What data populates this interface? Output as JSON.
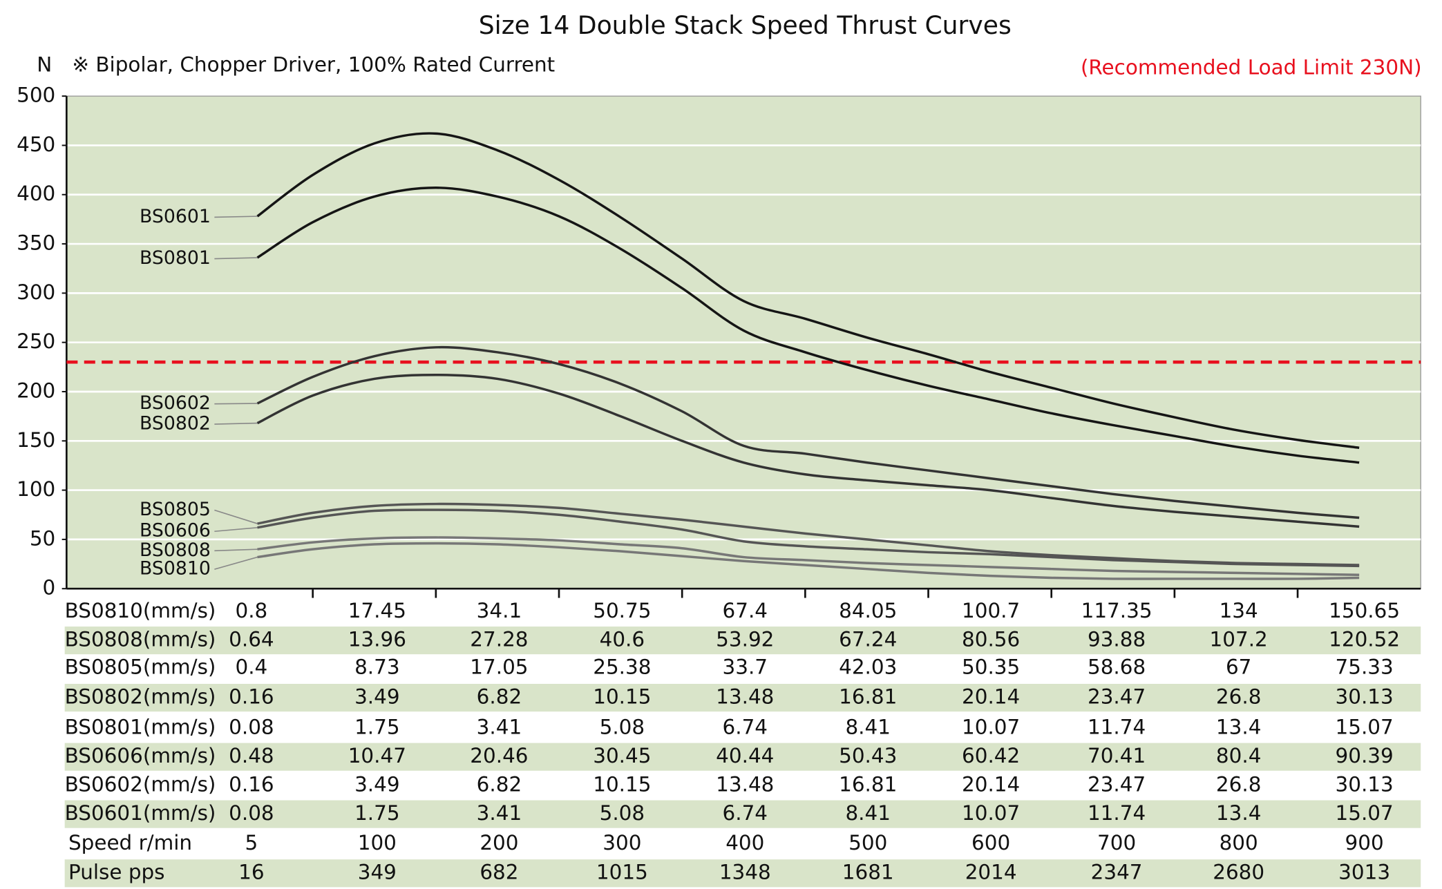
{
  "chart_data": {
    "type": "line",
    "title": "Size 14 Double  Stack Speed Thrust Curves",
    "y_label": "N",
    "subtitle": "※ Bipolar, Chopper Driver, 100% Rated Current",
    "limit": {
      "value": 230,
      "label": "(Recommended Load Limit 230N)",
      "color": "#e8101e"
    },
    "x": [
      5,
      50,
      100,
      150,
      200,
      250,
      300,
      350,
      400,
      450,
      500,
      550,
      600,
      650,
      700,
      750,
      800,
      850,
      900
    ],
    "xlim": [
      -150,
      950
    ],
    "xticks": [
      50,
      150,
      250,
      350,
      450,
      550,
      650,
      750,
      850
    ],
    "ylim": [
      0,
      500
    ],
    "yticks": [
      0,
      50,
      100,
      150,
      200,
      250,
      300,
      350,
      400,
      450,
      500
    ],
    "grid": true,
    "background": "#d9e4c9",
    "series": [
      {
        "name": "BS0601",
        "color": "#151515",
        "values": [
          378,
          420,
          452,
          462,
          445,
          415,
          377,
          335,
          292,
          274,
          255,
          238,
          220,
          204,
          188,
          174,
          161,
          151,
          143
        ]
      },
      {
        "name": "BS0801",
        "color": "#151515",
        "values": [
          336,
          372,
          398,
          407,
          398,
          378,
          345,
          305,
          262,
          240,
          222,
          206,
          192,
          178,
          166,
          155,
          144,
          135,
          128
        ]
      },
      {
        "name": "BS0602",
        "color": "#333333",
        "values": [
          188,
          215,
          236,
          245,
          240,
          228,
          208,
          180,
          145,
          137,
          128,
          120,
          112,
          104,
          96,
          89,
          83,
          77,
          72
        ]
      },
      {
        "name": "BS0802",
        "color": "#333333",
        "values": [
          168,
          196,
          213,
          217,
          213,
          198,
          175,
          150,
          128,
          116,
          110,
          105,
          100,
          92,
          84,
          78,
          73,
          68,
          63
        ]
      },
      {
        "name": "BS0805",
        "color": "#555555",
        "values": [
          66,
          77,
          84,
          86,
          85,
          82,
          76,
          70,
          63,
          56,
          50,
          44,
          38,
          34,
          31,
          28,
          26,
          25,
          24
        ]
      },
      {
        "name": "BS0606",
        "color": "#555555",
        "values": [
          62,
          72,
          79,
          80,
          79,
          75,
          68,
          60,
          48,
          43,
          40,
          37,
          35,
          32,
          29,
          27,
          25,
          24,
          23
        ]
      },
      {
        "name": "BS0808",
        "color": "#777777",
        "values": [
          40,
          47,
          51,
          52,
          51,
          49,
          45,
          41,
          32,
          29,
          26,
          24,
          22,
          20,
          18,
          17,
          16,
          15,
          14
        ]
      },
      {
        "name": "BS0810",
        "color": "#777777",
        "values": [
          32,
          40,
          45,
          46,
          45,
          42,
          38,
          33,
          28,
          24,
          20,
          16,
          13,
          11,
          10,
          10,
          10,
          10,
          11
        ]
      }
    ]
  },
  "table": {
    "row_shade": "#d9e4c9",
    "rows": [
      [
        "BS0810(mm/s)",
        "0.8",
        "17.45",
        "34.1",
        "50.75",
        "67.4",
        "84.05",
        "100.7",
        "117.35",
        "134",
        "150.65"
      ],
      [
        "BS0808(mm/s)",
        "0.64",
        "13.96",
        "27.28",
        "40.6",
        "53.92",
        "67.24",
        "80.56",
        "93.88",
        "107.2",
        "120.52"
      ],
      [
        "BS0805(mm/s)",
        "0.4",
        "8.73",
        "17.05",
        "25.38",
        "33.7",
        "42.03",
        "50.35",
        "58.68",
        "67",
        "75.33"
      ],
      [
        "BS0802(mm/s)",
        "0.16",
        "3.49",
        "6.82",
        "10.15",
        "13.48",
        "16.81",
        "20.14",
        "23.47",
        "26.8",
        "30.13"
      ],
      [
        "BS0801(mm/s)",
        "0.08",
        "1.75",
        "3.41",
        "5.08",
        "6.74",
        "8.41",
        "10.07",
        "11.74",
        "13.4",
        "15.07"
      ],
      [
        "BS0606(mm/s)",
        "0.48",
        "10.47",
        "20.46",
        "30.45",
        "40.44",
        "50.43",
        "60.42",
        "70.41",
        "80.4",
        "90.39"
      ],
      [
        "BS0602(mm/s)",
        "0.16",
        "3.49",
        "6.82",
        "10.15",
        "13.48",
        "16.81",
        "20.14",
        "23.47",
        "26.8",
        "30.13"
      ],
      [
        "BS0601(mm/s)",
        "0.08",
        "1.75",
        "3.41",
        "5.08",
        "6.74",
        "8.41",
        "10.07",
        "11.74",
        "13.4",
        "15.07"
      ],
      [
        "Speed  r/min",
        "5",
        "100",
        "200",
        "300",
        "400",
        "500",
        "600",
        "700",
        "800",
        "900"
      ],
      [
        "Pulse  pps",
        "16",
        "349",
        "682",
        "1015",
        "1348",
        "1681",
        "2014",
        "2347",
        "2680",
        "3013"
      ]
    ]
  }
}
